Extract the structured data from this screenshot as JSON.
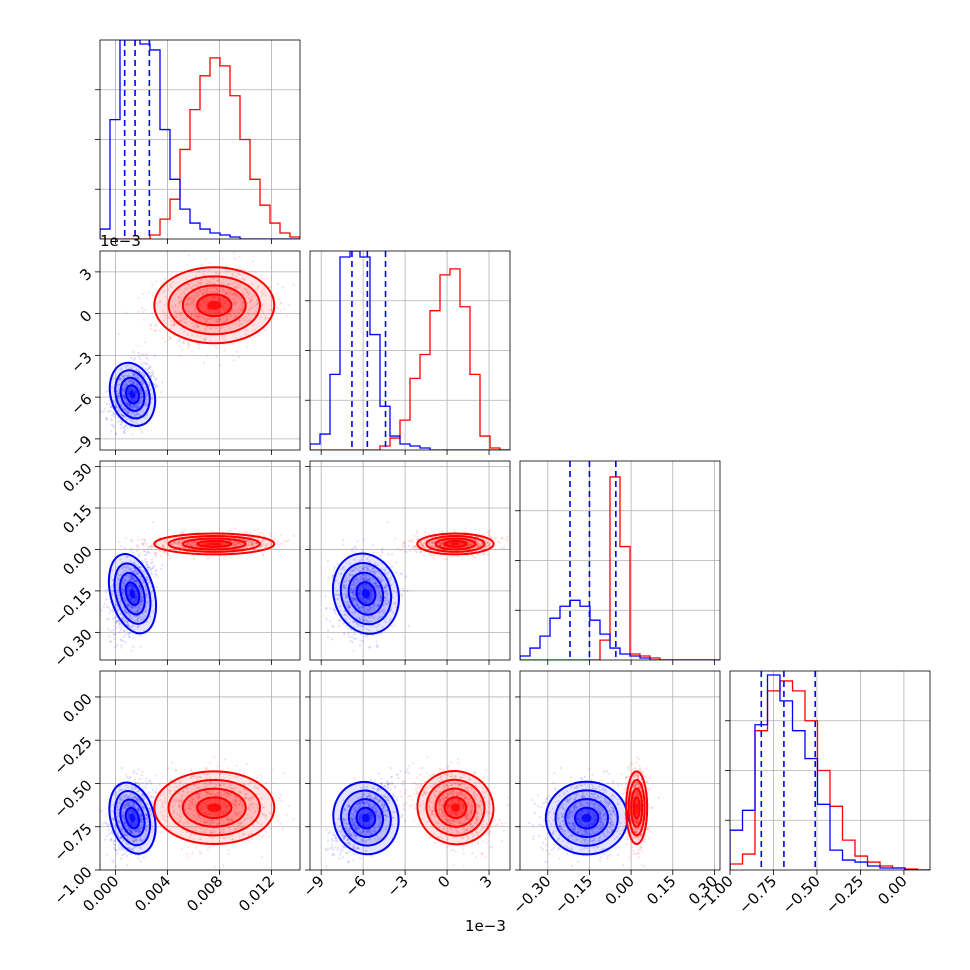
{
  "chart_data": {
    "type": "corner",
    "series": [
      {
        "name": "",
        "color": "#0000ff"
      },
      {
        "name": "",
        "color": "#ff0000"
      }
    ],
    "colors": {
      "blue": "#0000ff",
      "red": "#ff0000",
      "grid": "#b0b0b0"
    },
    "grid": true,
    "params": [
      {
        "id": "p0",
        "range": [
          -0.0012,
          0.0142
        ],
        "ticks": [
          0.0,
          0.004,
          0.008,
          0.012
        ],
        "tick_labels": [
          "0.000",
          "0.004",
          "0.008",
          "0.012"
        ],
        "offset_label": "1e−3"
      },
      {
        "id": "p1",
        "range": [
          -0.0098,
          0.0045
        ],
        "ticks": [
          -0.009,
          -0.006,
          -0.003,
          0.0,
          0.003
        ],
        "tick_labels": [
          "−9",
          "−6",
          "−3",
          "0",
          "3"
        ],
        "offset_label": "1e−3"
      },
      {
        "id": "p2",
        "range": [
          -0.4,
          0.32
        ],
        "ticks": [
          -0.3,
          -0.15,
          0.0,
          0.15,
          0.3
        ],
        "tick_labels": [
          "−0.30",
          "−0.15",
          "0.00",
          "0.15",
          "0.30"
        ]
      },
      {
        "id": "p3",
        "range": [
          -1.0,
          0.15
        ],
        "ticks": [
          -1.0,
          -0.75,
          -0.5,
          -0.25,
          0.0
        ],
        "tick_labels": [
          "−1.00",
          "−0.75",
          "−0.50",
          "−0.25",
          "0.00"
        ]
      }
    ],
    "histograms": [
      {
        "param": 0,
        "blue_quantiles": [
          0.0007,
          0.0015,
          0.0026
        ],
        "blue": [
          0.05,
          0.6,
          1.0,
          1.0,
          0.98,
          0.95,
          0.55,
          0.3,
          0.15,
          0.08,
          0.05,
          0.03,
          0.02,
          0.01,
          0.0,
          0.0,
          0.0,
          0.0,
          0.0,
          0.0
        ],
        "red": [
          0.0,
          0.0,
          0.0,
          0.0,
          0.0,
          0.02,
          0.1,
          0.2,
          0.45,
          0.65,
          0.82,
          0.91,
          0.87,
          0.72,
          0.5,
          0.3,
          0.17,
          0.08,
          0.03,
          0.01
        ]
      },
      {
        "param": 1,
        "blue_quantiles": [
          -0.0068,
          -0.0057,
          -0.0044
        ],
        "blue": [
          0.03,
          0.08,
          0.38,
          0.97,
          1.0,
          0.97,
          0.58,
          0.22,
          0.07,
          0.03,
          0.02,
          0.01,
          0.0,
          0.0,
          0.0,
          0.0,
          0.0,
          0.0,
          0.0,
          0.0
        ],
        "red": [
          0.0,
          0.0,
          0.0,
          0.0,
          0.0,
          0.0,
          0.0,
          0.02,
          0.06,
          0.15,
          0.36,
          0.48,
          0.7,
          0.88,
          0.91,
          0.72,
          0.38,
          0.07,
          0.01,
          0.0
        ]
      },
      {
        "param": 2,
        "blue_quantiles": [
          -0.22,
          -0.15,
          -0.055
        ],
        "blue": [
          0.02,
          0.06,
          0.12,
          0.21,
          0.27,
          0.3,
          0.27,
          0.2,
          0.13,
          0.06,
          0.03,
          0.02,
          0.01,
          0.0,
          0.0,
          0.0,
          0.0,
          0.0,
          0.0,
          0.0
        ],
        "red": [
          0.0,
          0.0,
          0.0,
          0.0,
          0.0,
          0.0,
          0.0,
          0.0,
          0.1,
          0.92,
          0.57,
          0.03,
          0.02,
          0.01,
          0.0,
          0.0,
          0.0,
          0.0,
          0.0,
          0.0
        ]
      },
      {
        "param": 3,
        "blue_quantiles": [
          -0.82,
          -0.69,
          -0.51
        ],
        "blue": [
          0.2,
          0.3,
          0.73,
          0.98,
          0.85,
          0.7,
          0.56,
          0.33,
          0.1,
          0.05,
          0.04,
          0.02,
          0.01,
          0.01,
          0.0,
          0.0
        ],
        "red": [
          0.03,
          0.08,
          0.7,
          0.9,
          0.95,
          0.9,
          0.75,
          0.5,
          0.32,
          0.15,
          0.07,
          0.04,
          0.02,
          0.01,
          0.005,
          0.0
        ]
      }
    ],
    "distributions": {
      "blue": {
        "mean": [
          0.0013,
          -0.0058,
          -0.16,
          -0.7
        ],
        "sd": [
          0.0008,
          0.0011,
          0.07,
          0.1
        ]
      },
      "red": {
        "mean": [
          0.0076,
          0.0006,
          0.02,
          -0.64
        ],
        "sd": [
          0.0022,
          0.0013,
          0.018,
          0.1
        ]
      }
    }
  }
}
